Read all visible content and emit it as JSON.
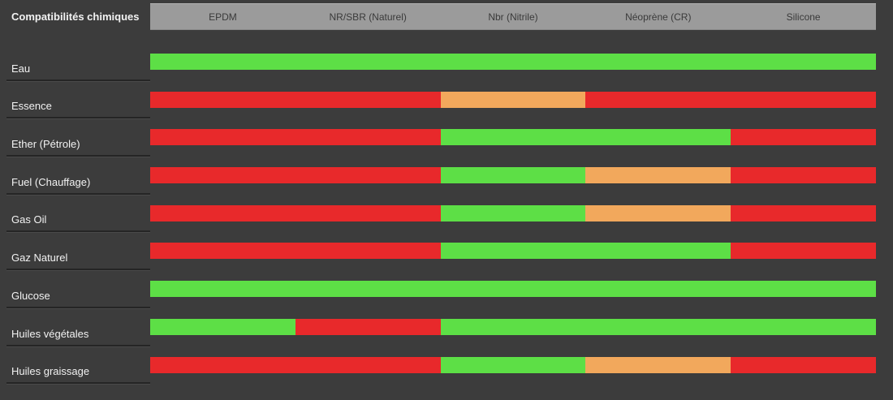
{
  "title": "Compatibilités chimiques",
  "materials": [
    "EPDM",
    "NR/SBR (Naturel)",
    "Nbr (Nitrile)",
    "Néoprène (CR)",
    "Silicone"
  ],
  "palette": {
    "good": "#5ddf46",
    "moderate": "#f2a85c",
    "bad": "#e8292b"
  },
  "colors": {
    "background": "#3c3c3c",
    "header_bg": "#9b9b9b",
    "header_text": "#3a3a3a",
    "label_text": "#f2f2f2",
    "separator": "#252525"
  },
  "rows": [
    {
      "label": "Eau",
      "cells": [
        "good",
        "good",
        "good",
        "good",
        "good"
      ]
    },
    {
      "label": "Essence",
      "cells": [
        "bad",
        "bad",
        "moderate",
        "bad",
        "bad"
      ]
    },
    {
      "label": "Ether (Pétrole)",
      "cells": [
        "bad",
        "bad",
        "good",
        "good",
        "bad"
      ]
    },
    {
      "label": "Fuel (Chauffage)",
      "cells": [
        "bad",
        "bad",
        "good",
        "moderate",
        "bad"
      ]
    },
    {
      "label": "Gas Oil",
      "cells": [
        "bad",
        "bad",
        "good",
        "moderate",
        "bad"
      ]
    },
    {
      "label": "Gaz Naturel",
      "cells": [
        "bad",
        "bad",
        "good",
        "good",
        "bad"
      ]
    },
    {
      "label": "Glucose",
      "cells": [
        "good",
        "good",
        "good",
        "good",
        "good"
      ]
    },
    {
      "label": "Huiles végétales",
      "cells": [
        "good",
        "bad",
        "good",
        "good",
        "good"
      ]
    },
    {
      "label": "Huiles graissage",
      "cells": [
        "bad",
        "bad",
        "good",
        "moderate",
        "bad"
      ]
    }
  ],
  "chart_data": {
    "type": "heatmap",
    "title": "Compatibilités chimiques",
    "columns": [
      "EPDM",
      "NR/SBR (Naturel)",
      "Nbr (Nitrile)",
      "Néoprène (CR)",
      "Silicone"
    ],
    "rows": [
      "Eau",
      "Essence",
      "Ether (Pétrole)",
      "Fuel (Chauffage)",
      "Gas Oil",
      "Gaz Naturel",
      "Glucose",
      "Huiles végétales",
      "Huiles graissage"
    ],
    "values": [
      [
        "good",
        "good",
        "good",
        "good",
        "good"
      ],
      [
        "bad",
        "bad",
        "moderate",
        "bad",
        "bad"
      ],
      [
        "bad",
        "bad",
        "good",
        "good",
        "bad"
      ],
      [
        "bad",
        "bad",
        "good",
        "moderate",
        "bad"
      ],
      [
        "bad",
        "bad",
        "good",
        "moderate",
        "bad"
      ],
      [
        "bad",
        "bad",
        "good",
        "good",
        "bad"
      ],
      [
        "good",
        "good",
        "good",
        "good",
        "good"
      ],
      [
        "good",
        "bad",
        "good",
        "good",
        "good"
      ],
      [
        "bad",
        "bad",
        "good",
        "moderate",
        "bad"
      ]
    ],
    "value_colors": {
      "good": "#5ddf46",
      "moderate": "#f2a85c",
      "bad": "#e8292b"
    },
    "legend_position": "none",
    "grid": false
  }
}
